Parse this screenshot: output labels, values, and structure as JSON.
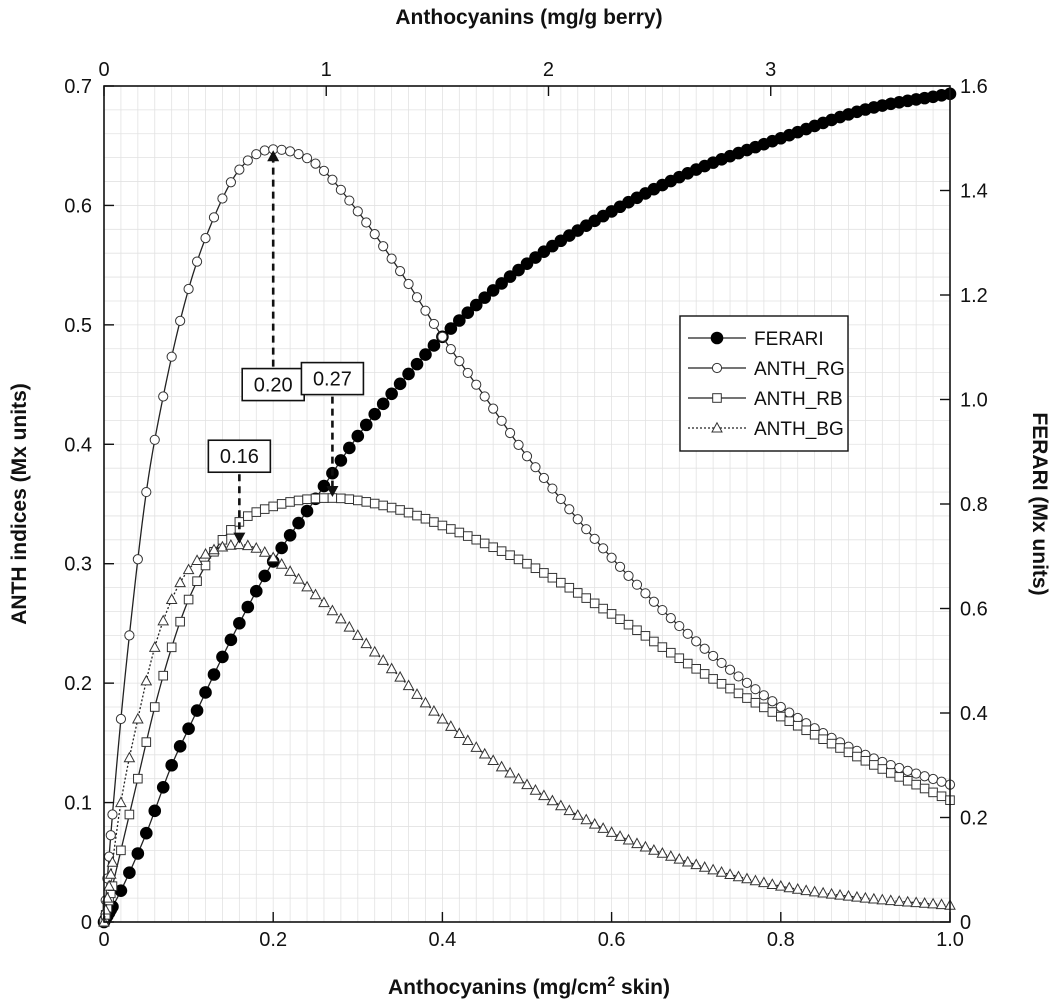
{
  "chart_data": {
    "type": "line",
    "x_bottom": {
      "label_main": "Anthocyanins (mg/cm",
      "label_sup": "2",
      "label_end": " skin)",
      "range": [
        0,
        1.0
      ],
      "ticks": [
        0,
        0.2,
        0.4,
        0.6,
        0.8,
        1.0
      ],
      "tick_labels": [
        "0",
        "0.2",
        "0.4",
        "0.6",
        "0.8",
        "1.0"
      ]
    },
    "x_top": {
      "label": "Anthocyanins (mg/g berry)",
      "ticks": [
        0,
        1,
        2,
        3
      ],
      "tick_labels": [
        "0",
        "1",
        "2",
        "3"
      ],
      "bottom_units_per_unit": 0.2627
    },
    "y_left": {
      "label": "ANTH indices (Mx units)",
      "range": [
        0,
        0.7
      ],
      "ticks": [
        0,
        0.1,
        0.2,
        0.3,
        0.4,
        0.5,
        0.6,
        0.7
      ],
      "tick_labels": [
        "0",
        "0.1",
        "0.2",
        "0.3",
        "0.4",
        "0.5",
        "0.6",
        "0.7"
      ]
    },
    "y_right": {
      "label": "FERARI (Mx units)",
      "range": [
        0,
        1.6
      ],
      "ticks": [
        0,
        0.2,
        0.4,
        0.6,
        0.8,
        1.0,
        1.2,
        1.4,
        1.6
      ],
      "tick_labels": [
        "0",
        "0.2",
        "0.4",
        "0.6",
        "0.8",
        "1.0",
        "1.2",
        "1.4",
        "1.6"
      ]
    },
    "grid": true,
    "legend_position": "right-middle",
    "series": [
      {
        "name": "FERARI",
        "axis": "right",
        "marker": "filled-circle",
        "line": "solid",
        "x": [
          0,
          0.02,
          0.05,
          0.08,
          0.1,
          0.15,
          0.2,
          0.25,
          0.3,
          0.35,
          0.4,
          0.5,
          0.6,
          0.7,
          0.8,
          0.9,
          1.0
        ],
        "y": [
          0,
          0.06,
          0.17,
          0.3,
          0.37,
          0.54,
          0.69,
          0.81,
          0.93,
          1.03,
          1.12,
          1.26,
          1.36,
          1.44,
          1.5,
          1.555,
          1.585
        ]
      },
      {
        "name": "ANTH_RG",
        "axis": "left",
        "marker": "open-circle",
        "line": "solid",
        "x": [
          0,
          0.01,
          0.02,
          0.03,
          0.05,
          0.07,
          0.1,
          0.13,
          0.16,
          0.2,
          0.25,
          0.3,
          0.35,
          0.4,
          0.45,
          0.5,
          0.6,
          0.7,
          0.8,
          0.9,
          1.0
        ],
        "y": [
          0,
          0.09,
          0.17,
          0.24,
          0.36,
          0.44,
          0.53,
          0.59,
          0.63,
          0.647,
          0.635,
          0.595,
          0.545,
          0.49,
          0.44,
          0.39,
          0.305,
          0.235,
          0.18,
          0.14,
          0.115
        ]
      },
      {
        "name": "ANTH_RB",
        "axis": "left",
        "marker": "open-square",
        "line": "solid",
        "x": [
          0,
          0.01,
          0.02,
          0.04,
          0.06,
          0.08,
          0.1,
          0.13,
          0.16,
          0.2,
          0.24,
          0.27,
          0.3,
          0.35,
          0.4,
          0.5,
          0.6,
          0.7,
          0.8,
          0.9,
          1.0
        ],
        "y": [
          0,
          0.03,
          0.06,
          0.12,
          0.18,
          0.23,
          0.27,
          0.31,
          0.335,
          0.348,
          0.354,
          0.355,
          0.353,
          0.345,
          0.332,
          0.3,
          0.258,
          0.212,
          0.172,
          0.135,
          0.102
        ]
      },
      {
        "name": "ANTH_BG",
        "axis": "left",
        "marker": "open-triangle",
        "line": "dotted",
        "x": [
          0,
          0.01,
          0.02,
          0.04,
          0.06,
          0.08,
          0.1,
          0.12,
          0.14,
          0.16,
          0.18,
          0.2,
          0.25,
          0.3,
          0.35,
          0.4,
          0.5,
          0.6,
          0.7,
          0.8,
          0.9,
          1.0
        ],
        "y": [
          0,
          0.05,
          0.1,
          0.17,
          0.23,
          0.27,
          0.295,
          0.308,
          0.314,
          0.316,
          0.313,
          0.305,
          0.274,
          0.24,
          0.205,
          0.17,
          0.115,
          0.075,
          0.048,
          0.03,
          0.02,
          0.014
        ]
      }
    ],
    "annotations": [
      {
        "text": "0.20",
        "x": 0.2,
        "target_y": 0.647,
        "box_y": 0.45
      },
      {
        "text": "0.27",
        "x": 0.27,
        "target_y": 0.355,
        "box_y": 0.455
      },
      {
        "text": "0.16",
        "x": 0.16,
        "target_y": 0.316,
        "box_y": 0.39
      }
    ]
  }
}
